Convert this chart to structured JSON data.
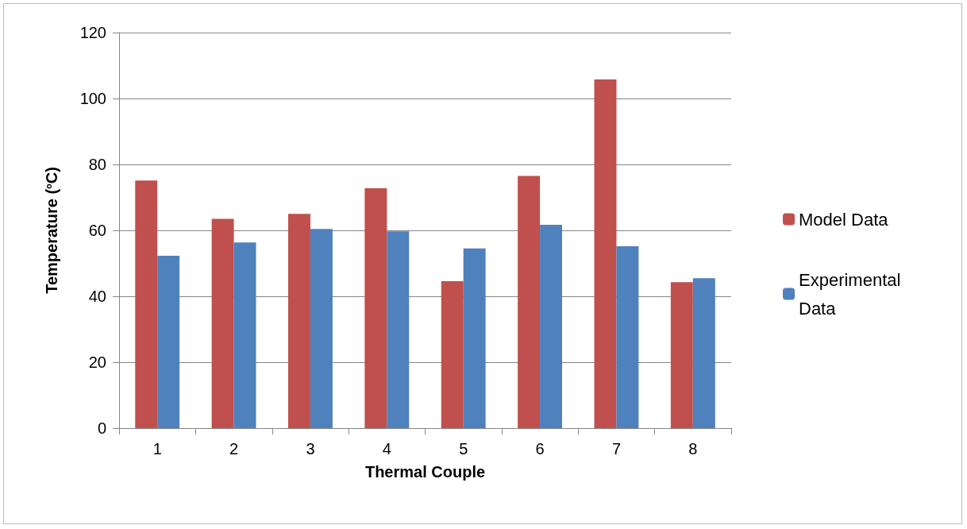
{
  "chart_data": {
    "type": "bar",
    "xlabel": "Thermal Couple",
    "ylabel": "Temperature ($^{o}$C)",
    "categories": [
      "1",
      "2",
      "3",
      "4",
      "5",
      "6",
      "7",
      "8"
    ],
    "series": [
      {
        "name": "Model Data",
        "color": "#c0504d",
        "values": [
          75.1,
          63.5,
          65.0,
          72.8,
          44.6,
          76.5,
          105.8,
          44.3
        ]
      },
      {
        "name": "Experimental Data",
        "color": "#4f81bd",
        "values": [
          52.3,
          56.3,
          60.4,
          59.7,
          54.5,
          61.7,
          55.2,
          45.5
        ]
      }
    ],
    "ylim": [
      0,
      120
    ],
    "yticks": [
      0,
      20,
      40,
      60,
      80,
      100,
      120
    ],
    "grid": "y",
    "legend": "right"
  }
}
